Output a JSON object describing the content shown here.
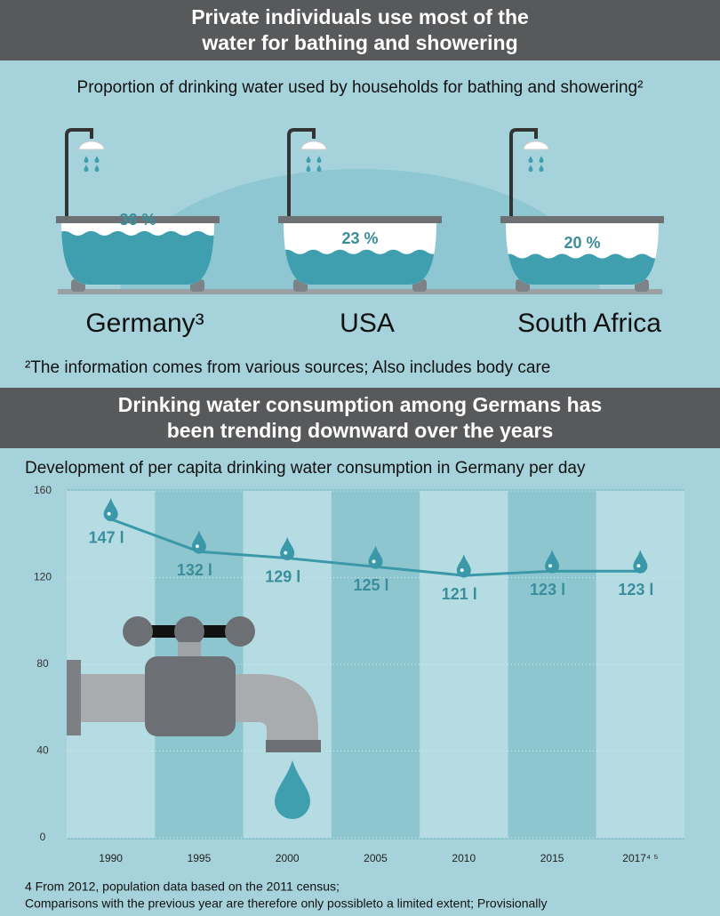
{
  "chart_data": [
    {
      "type": "tub",
      "title": "Private individuals use most of the water for bathing and showering",
      "subtitle": "Proportion of drinking water used by households for bathing and showering²",
      "categories": [
        "Germany³",
        "USA",
        "South Africa"
      ],
      "values": [
        36,
        23,
        20
      ],
      "value_labels": [
        "36 %",
        "23 %",
        "20 %"
      ],
      "color": "#3f9fae",
      "note": "²The information comes from various sources; Also includes body care"
    },
    {
      "type": "line",
      "title": "Drinking water consumption among Germans has been trending downward over the years",
      "subtitle": "Development of per capita drinking water consumption in Germany per day",
      "categories": [
        "1990",
        "1995",
        "2000",
        "2005",
        "2010",
        "2015",
        "2017⁴ ⁵"
      ],
      "values": [
        147,
        132,
        129,
        125,
        121,
        123,
        123
      ],
      "value_labels": [
        "147 l",
        "132 l",
        "129 l",
        "125 l",
        "121 l",
        "123 l",
        "123 l"
      ],
      "color": "#3a98a8",
      "ylim": [
        0,
        160
      ],
      "yticks": [
        0,
        40,
        80,
        120,
        160
      ],
      "notes": [
        "4 From 2012, population data based on the 2011 census;",
        "Comparisons with the previous year are therefore only possibleto a limited extent; Provisionally"
      ]
    }
  ]
}
